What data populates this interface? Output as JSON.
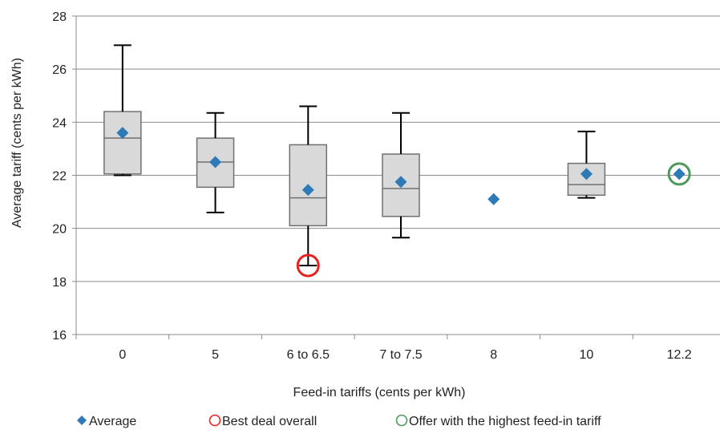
{
  "chart_data": {
    "type": "box",
    "title": "",
    "xlabel": "Feed-in  tariffs (cents per kWh)",
    "ylabel": "Average tariff (cents per kWh)",
    "ylim": [
      16,
      28
    ],
    "yticks": [
      16,
      18,
      20,
      22,
      24,
      26,
      28
    ],
    "categories": [
      "0",
      "5",
      "6 to 6.5",
      "7 to 7.5",
      "8",
      "10",
      "12.2"
    ],
    "grid": true,
    "legend_position": "bottom",
    "boxes": [
      {
        "category": "0",
        "min": 22.0,
        "q1": 22.05,
        "median": 23.4,
        "q3": 24.4,
        "max": 26.9,
        "average": 23.6
      },
      {
        "category": "5",
        "min": 20.6,
        "q1": 21.55,
        "median": 22.5,
        "q3": 23.4,
        "max": 24.35,
        "average": 22.5
      },
      {
        "category": "6 to 6.5",
        "min": 18.6,
        "q1": 20.1,
        "median": 21.15,
        "q3": 23.15,
        "max": 24.6,
        "average": 21.45
      },
      {
        "category": "7 to 7.5",
        "min": 19.65,
        "q1": 20.45,
        "median": 21.5,
        "q3": 22.8,
        "max": 24.35,
        "average": 21.75
      },
      {
        "category": "8",
        "min": null,
        "q1": null,
        "median": null,
        "q3": null,
        "max": null,
        "average": 21.1
      },
      {
        "category": "10",
        "min": 21.15,
        "q1": 21.25,
        "median": 21.65,
        "q3": 22.45,
        "max": 23.65,
        "average": 22.05
      },
      {
        "category": "12.2",
        "min": null,
        "q1": null,
        "median": null,
        "q3": null,
        "max": null,
        "average": 22.05
      }
    ],
    "highlights": [
      {
        "category": "6 to 6.5",
        "value": 18.6,
        "series": "Best deal overall"
      },
      {
        "category": "12.2",
        "value": 22.05,
        "series": "Offer with the highest feed-in tariff"
      }
    ],
    "legend": [
      {
        "label": "Average",
        "marker": "diamond",
        "color": "#2e7ab8"
      },
      {
        "label": "Best deal overall",
        "marker": "circle-open",
        "color": "#e8231f"
      },
      {
        "label": "Offer with the highest feed-in tariff",
        "marker": "circle-open",
        "color": "#4f9a5a"
      }
    ],
    "colors": {
      "box_fill": "#d9d9d9",
      "box_stroke": "#707070",
      "whisker": "#000000",
      "average": "#2e7ab8",
      "best_deal": "#e8231f",
      "highest_fit": "#4f9a5a",
      "grid": "#8c8c8c",
      "axis": "#8c8c8c"
    }
  }
}
